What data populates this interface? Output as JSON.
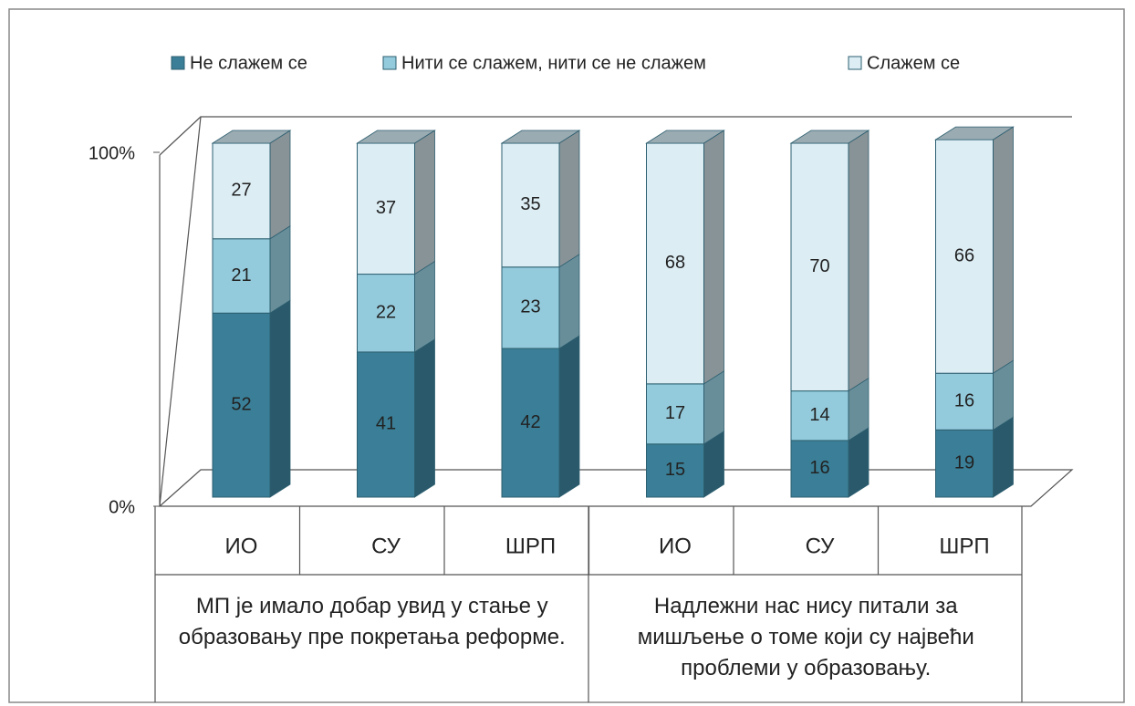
{
  "chart_data": {
    "type": "bar",
    "stacked": true,
    "three_d": true,
    "categories": [
      "ИО",
      "СУ",
      "ШРП",
      "ИО",
      "СУ",
      "ШРП"
    ],
    "groups": [
      {
        "label": "МП је имало добар увид у стање у образовању пре покретања реформе.",
        "span": 3
      },
      {
        "label": "Надлежни нас нису питали за мишљење о томе који су највећи проблеми у образовању.",
        "span": 3
      }
    ],
    "series": [
      {
        "name": "Не слажем се",
        "color": "#3a7f97",
        "values": [
          52,
          41,
          42,
          15,
          16,
          19
        ]
      },
      {
        "name": "Нити се слажем, нити се не слажем",
        "color": "#94cbdc",
        "values": [
          21,
          22,
          23,
          17,
          14,
          16
        ]
      },
      {
        "name": "Слажем се",
        "color": "#dcedf4",
        "values": [
          27,
          37,
          35,
          68,
          70,
          66
        ]
      }
    ],
    "ylim": [
      0,
      100
    ],
    "yticks": [
      {
        "value": 0,
        "label": "0%"
      },
      {
        "value": 100,
        "label": "100%"
      }
    ],
    "legend": "top"
  }
}
